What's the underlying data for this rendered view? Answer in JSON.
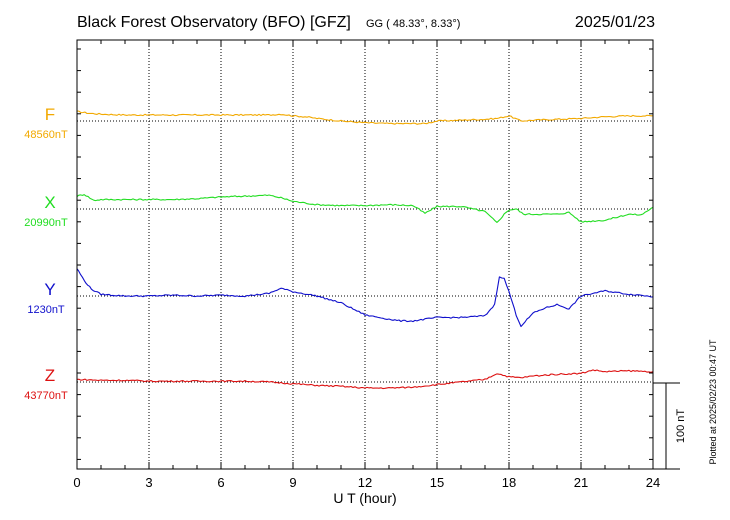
{
  "header": {
    "title": "Black Forest Observatory (BFO)  [GFZ]",
    "coords": "GG ( 48.33°,   8.33°)",
    "date": "2025/01/23"
  },
  "footer": {
    "plotted": "Plotted at 2025/02/23 00:47 UT"
  },
  "chart_data": {
    "type": "line",
    "title": "Black Forest Observatory (BFO)  [GFZ]",
    "xlabel": "U T (hour)",
    "xlim": [
      0,
      24
    ],
    "xticks": [
      "0",
      "3",
      "6",
      "9",
      "12",
      "15",
      "18",
      "21",
      "24"
    ],
    "grid": true,
    "scale_bar": {
      "label": "100 nT",
      "value_nT": 100
    },
    "series": [
      {
        "name": "F",
        "baseline": "48560nT",
        "baseline_value": 48560,
        "color": "#f2a900",
        "x": [
          0,
          0.5,
          1,
          2,
          3,
          4,
          5,
          6,
          7,
          8,
          8.5,
          9,
          9.5,
          10,
          11,
          12,
          13,
          14,
          14.5,
          15,
          16,
          17,
          17.5,
          18,
          18.5,
          19,
          20,
          21,
          22,
          23,
          24
        ],
        "y": [
          11,
          9,
          8,
          7,
          7,
          7,
          7,
          7,
          7,
          7,
          8,
          6,
          5,
          3,
          0,
          -2,
          -3,
          -3,
          -3,
          0,
          1,
          2,
          3,
          6,
          0,
          1,
          2,
          3,
          5,
          6,
          6
        ]
      },
      {
        "name": "X",
        "baseline": "20990nT",
        "baseline_value": 20990,
        "color": "#22dd22",
        "x": [
          0,
          0.3,
          0.7,
          1,
          2,
          3,
          4,
          5,
          6,
          7,
          8,
          8.5,
          9,
          10,
          11,
          12,
          13,
          14,
          14.5,
          15,
          16,
          17,
          17.5,
          17.8,
          18,
          18.3,
          18.6,
          19,
          20,
          20.5,
          21,
          22,
          23,
          23.5,
          24
        ],
        "y": [
          15,
          17,
          10,
          11,
          11,
          11,
          11,
          12,
          14,
          15,
          16,
          13,
          9,
          5,
          4,
          4,
          5,
          4,
          -5,
          3,
          3,
          -3,
          -16,
          -6,
          -1,
          0,
          -6,
          -6,
          -6,
          -4,
          -15,
          -13,
          -6,
          -7,
          2
        ]
      },
      {
        "name": "Y",
        "baseline": "1230nT",
        "baseline_value": 1230,
        "color": "#1010cc",
        "x": [
          0,
          0.3,
          0.6,
          1,
          2,
          3,
          4,
          5,
          6,
          7,
          8,
          8.5,
          9,
          10,
          11,
          12,
          13,
          13.5,
          14,
          15,
          16,
          17,
          17.4,
          17.6,
          17.8,
          18,
          18.3,
          18.5,
          19,
          19.5,
          20,
          20.5,
          21,
          22,
          23,
          23.5,
          24
        ],
        "y": [
          32,
          18,
          8,
          2,
          0,
          0,
          1,
          0,
          1,
          0,
          3,
          9,
          5,
          0,
          -8,
          -22,
          -27,
          -29,
          -29,
          -25,
          -25,
          -23,
          -10,
          23,
          20,
          5,
          -22,
          -35,
          -20,
          -14,
          -10,
          -15,
          0,
          6,
          2,
          1,
          -1
        ]
      },
      {
        "name": "Z",
        "baseline": "43770nT",
        "baseline_value": 43770,
        "color": "#dd1111",
        "x": [
          0,
          1,
          2,
          3,
          4,
          5,
          6,
          7,
          8,
          9,
          10,
          11,
          12,
          13,
          14,
          15,
          16,
          17,
          17.5,
          18,
          18.5,
          19,
          20,
          21,
          21.5,
          22,
          23,
          24
        ],
        "y": [
          3,
          2,
          2,
          1,
          1,
          1,
          1,
          1,
          0,
          -2,
          -4,
          -5,
          -7,
          -7,
          -6,
          -3,
          0,
          3,
          10,
          6,
          5,
          7,
          9,
          10,
          14,
          12,
          13,
          12
        ]
      }
    ]
  }
}
